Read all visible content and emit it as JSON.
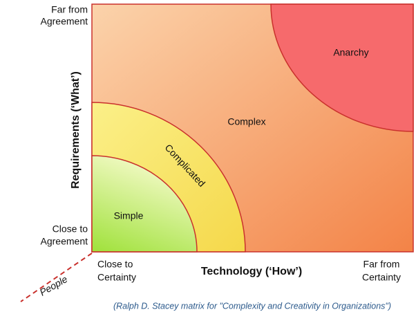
{
  "diagram": {
    "y_axis": {
      "title": "Requirements (‘What’)",
      "top_label": [
        "Far from",
        "Agreement"
      ],
      "bottom_label": [
        "Close to",
        "Agreement"
      ]
    },
    "x_axis": {
      "title": "Technology (‘How’)",
      "left_label": [
        "Close to",
        "Certainty"
      ],
      "right_label": [
        "Far from",
        "Certainty"
      ]
    },
    "z_axis": {
      "title": "People"
    },
    "regions": {
      "anarchy": "Anarchy",
      "complex": "Complex",
      "complicated": "Complicated",
      "simple": "Simple"
    },
    "caption": "(Ralph D. Stacey matrix for \"Complexity and Creativity in Organizations\")"
  }
}
